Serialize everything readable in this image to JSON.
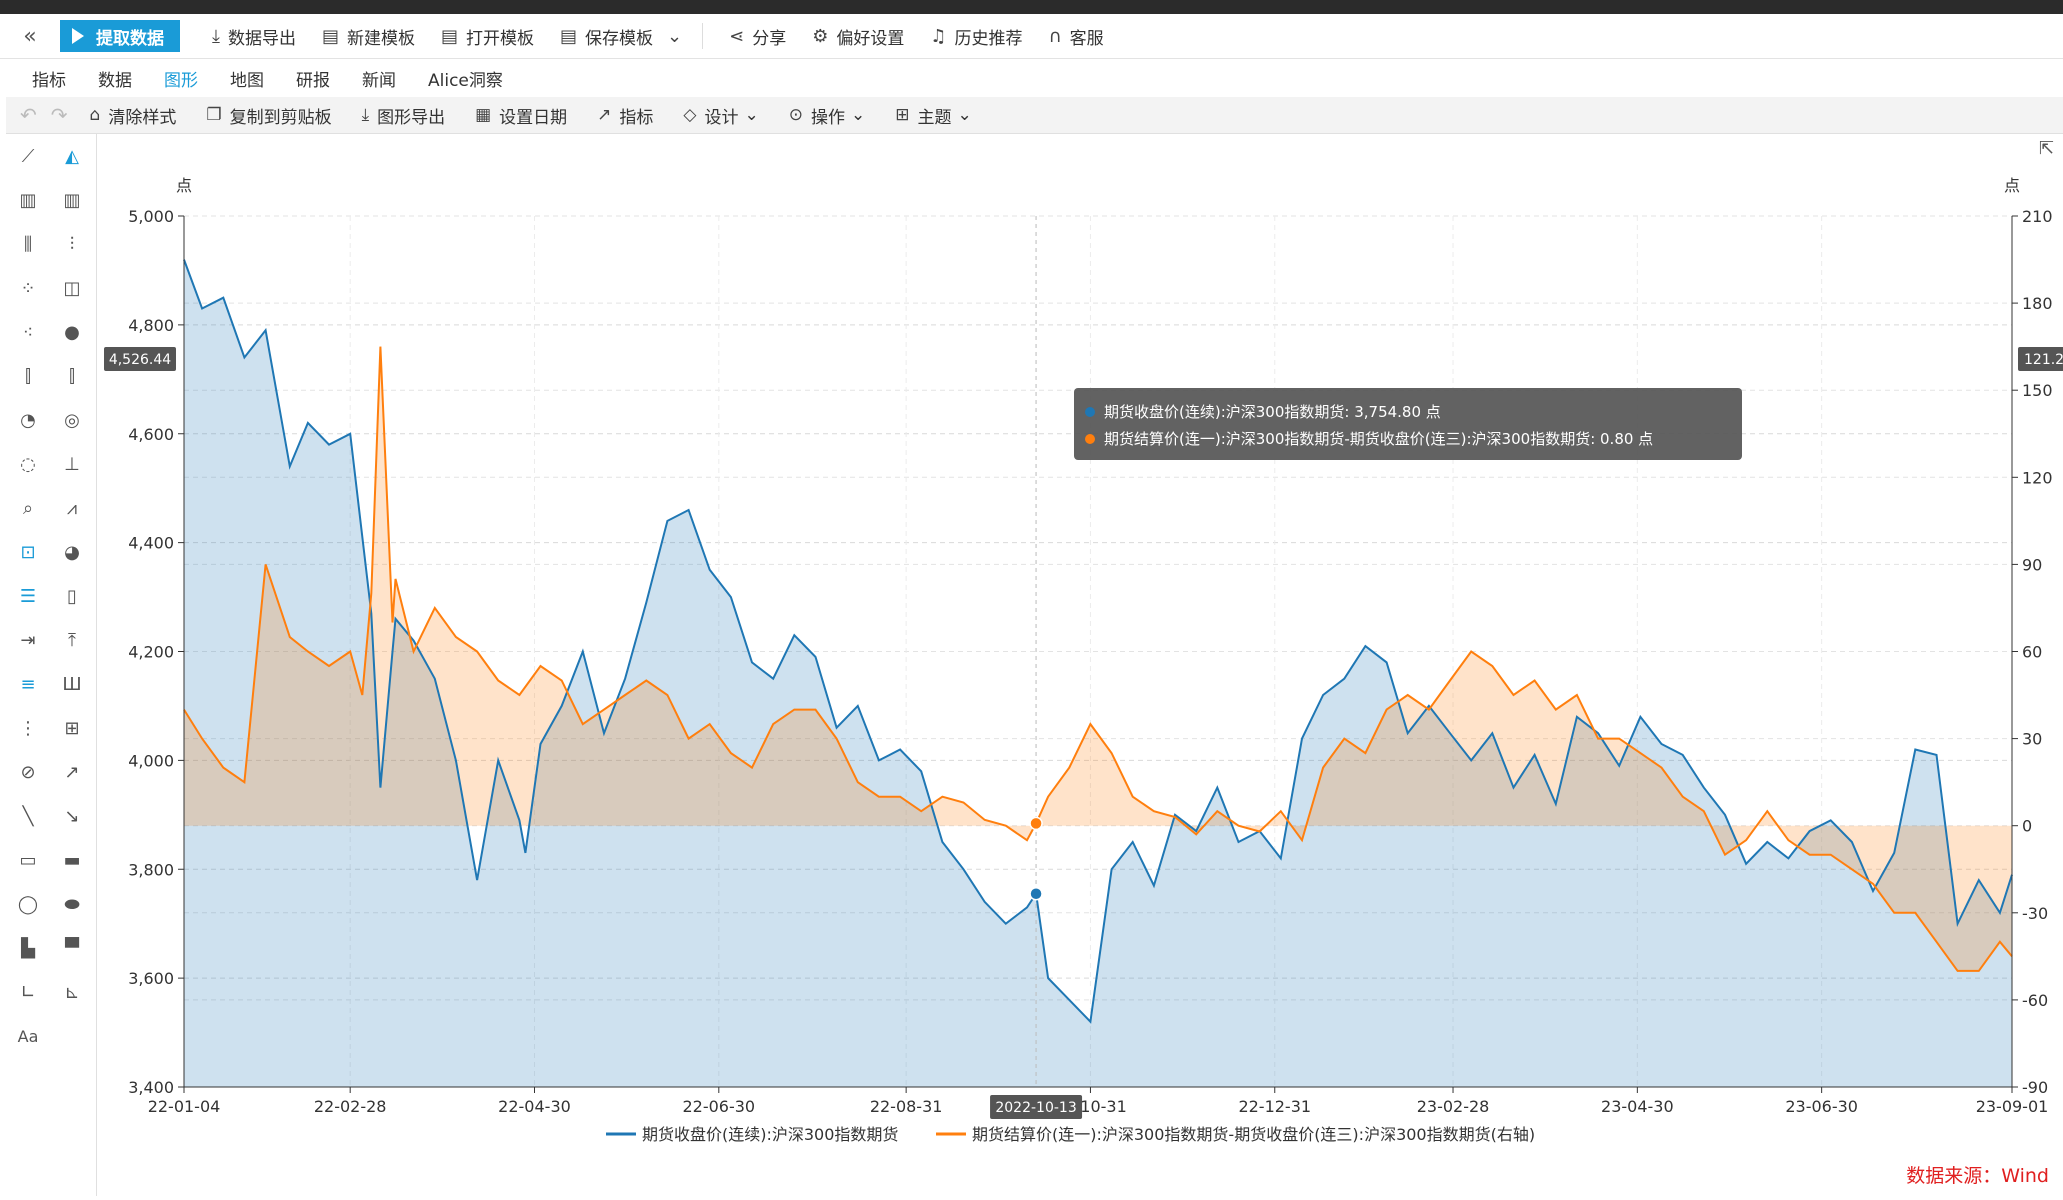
{
  "toolbar": {
    "collapse_icon": "double-chevron-left-icon",
    "extract_label": "提取数据",
    "items": [
      {
        "label": "数据导出",
        "icon": "download-icon"
      },
      {
        "label": "新建模板",
        "icon": "new-template-icon"
      },
      {
        "label": "打开模板",
        "icon": "open-template-icon"
      },
      {
        "label": "保存模板",
        "icon": "save-template-icon"
      },
      {
        "label": "分享",
        "icon": "share-icon"
      },
      {
        "label": "偏好设置",
        "icon": "gear-icon"
      },
      {
        "label": "历史推荐",
        "icon": "bell-icon"
      },
      {
        "label": "客服",
        "icon": "headset-icon"
      }
    ]
  },
  "tabs": [
    {
      "label": "指标",
      "active": false
    },
    {
      "label": "数据",
      "active": false
    },
    {
      "label": "图形",
      "active": true
    },
    {
      "label": "地图",
      "active": false
    },
    {
      "label": "研报",
      "active": false
    },
    {
      "label": "新闻",
      "active": false
    },
    {
      "label": "Alice洞察",
      "active": false
    }
  ],
  "toolbar2": {
    "items": [
      {
        "label": "清除样式",
        "icon": "clear-style-icon"
      },
      {
        "label": "复制到剪贴板",
        "icon": "copy-icon"
      },
      {
        "label": "图形导出",
        "icon": "export-icon"
      },
      {
        "label": "设置日期",
        "icon": "calendar-icon"
      },
      {
        "label": "指标",
        "icon": "line-indicator-icon"
      },
      {
        "label": "设计",
        "icon": "design-icon"
      },
      {
        "label": "操作",
        "icon": "more-icon"
      },
      {
        "label": "主题",
        "icon": "theme-icon"
      }
    ]
  },
  "chart_data": {
    "type": "area",
    "left_unit": "点",
    "right_unit": "点",
    "left_ylim": [
      3400,
      5000
    ],
    "left_ticks": [
      "5,000",
      "4,800",
      "4,600",
      "4,400",
      "4,200",
      "4,000",
      "3,800",
      "3,600",
      "3,400"
    ],
    "right_ylim": [
      -90,
      210
    ],
    "right_ticks": [
      "210",
      "180",
      "150",
      "120",
      "90",
      "60",
      "30",
      "0",
      "-30",
      "-60",
      "-90"
    ],
    "x_ticks": [
      "22-01-04",
      "22-02-28",
      "22-04-30",
      "22-06-30",
      "22-08-31",
      "22-10-31",
      "22-12-31",
      "23-02-28",
      "23-04-30",
      "23-06-30",
      "23-09-01"
    ],
    "crosshair": {
      "date_label": "2022-10-13",
      "left_value_label": "4,526.44",
      "right_value_label": "121.2"
    },
    "tooltip": {
      "lines": [
        {
          "text": "期货收盘价(连续):沪深300指数期货: 3,754.80  点",
          "color": "#1f77b4"
        },
        {
          "text": "期货结算价(连一):沪深300指数期货-期货收盘价(连三):沪深300指数期货: 0.80  点",
          "color": "#ff7f0e"
        }
      ]
    },
    "grid": true,
    "legend_position": "bottom",
    "series": [
      {
        "name": "期货收盘价(连续):沪深300指数期货",
        "axis": "left",
        "color": "#1f77b4",
        "x": [
          "2022-01-04",
          "2022-01-10",
          "2022-01-17",
          "2022-01-24",
          "2022-01-31",
          "2022-02-08",
          "2022-02-14",
          "2022-02-21",
          "2022-02-28",
          "2022-03-07",
          "2022-03-10",
          "2022-03-14",
          "2022-03-15",
          "2022-03-21",
          "2022-03-28",
          "2022-04-04",
          "2022-04-11",
          "2022-04-18",
          "2022-04-25",
          "2022-04-27",
          "2022-05-02",
          "2022-05-09",
          "2022-05-16",
          "2022-05-23",
          "2022-05-30",
          "2022-06-06",
          "2022-06-13",
          "2022-06-20",
          "2022-06-27",
          "2022-07-04",
          "2022-07-11",
          "2022-07-18",
          "2022-07-25",
          "2022-08-01",
          "2022-08-08",
          "2022-08-15",
          "2022-08-22",
          "2022-08-29",
          "2022-09-05",
          "2022-09-12",
          "2022-09-19",
          "2022-09-26",
          "2022-10-03",
          "2022-10-10",
          "2022-10-13",
          "2022-10-17",
          "2022-10-24",
          "2022-10-31",
          "2022-11-07",
          "2022-11-14",
          "2022-11-21",
          "2022-11-28",
          "2022-12-05",
          "2022-12-12",
          "2022-12-19",
          "2022-12-26",
          "2023-01-02",
          "2023-01-09",
          "2023-01-16",
          "2023-01-23",
          "2023-01-30",
          "2023-02-06",
          "2023-02-13",
          "2023-02-20",
          "2023-02-27",
          "2023-03-06",
          "2023-03-13",
          "2023-03-20",
          "2023-03-27",
          "2023-04-03",
          "2023-04-10",
          "2023-04-17",
          "2023-04-24",
          "2023-05-01",
          "2023-05-08",
          "2023-05-15",
          "2023-05-22",
          "2023-05-29",
          "2023-06-05",
          "2023-06-12",
          "2023-06-19",
          "2023-06-26",
          "2023-07-03",
          "2023-07-10",
          "2023-07-17",
          "2023-07-24",
          "2023-07-31",
          "2023-08-07",
          "2023-08-14",
          "2023-08-21",
          "2023-08-28",
          "2023-09-01"
        ],
        "values": [
          4920,
          4830,
          4850,
          4740,
          4790,
          4540,
          4620,
          4580,
          4600,
          4270,
          3950,
          4200,
          4260,
          4220,
          4150,
          4000,
          3780,
          4000,
          3890,
          3830,
          4030,
          4100,
          4200,
          4050,
          4150,
          4290,
          4440,
          4460,
          4350,
          4300,
          4180,
          4150,
          4230,
          4190,
          4060,
          4100,
          4000,
          4020,
          3980,
          3850,
          3800,
          3740,
          3700,
          3730,
          3755,
          3600,
          3560,
          3520,
          3800,
          3850,
          3770,
          3900,
          3870,
          3950,
          3850,
          3870,
          3820,
          4040,
          4120,
          4150,
          4210,
          4180,
          4050,
          4100,
          4050,
          4000,
          4050,
          3950,
          4010,
          3920,
          4080,
          4050,
          3990,
          4080,
          4030,
          4010,
          3950,
          3900,
          3810,
          3850,
          3820,
          3870,
          3890,
          3850,
          3760,
          3830,
          4020,
          4010,
          3700,
          3780,
          3720,
          3790
        ]
      },
      {
        "name": "期货结算价(连一):沪深300指数期货-期货收盘价(连三):沪深300指数期货(右轴)",
        "axis": "right",
        "color": "#ff7f0e",
        "x": [
          "2022-01-04",
          "2022-01-10",
          "2022-01-17",
          "2022-01-24",
          "2022-01-31",
          "2022-02-08",
          "2022-02-14",
          "2022-02-21",
          "2022-02-28",
          "2022-03-04",
          "2022-03-07",
          "2022-03-10",
          "2022-03-14",
          "2022-03-15",
          "2022-03-21",
          "2022-03-28",
          "2022-04-04",
          "2022-04-11",
          "2022-04-18",
          "2022-04-25",
          "2022-05-02",
          "2022-05-09",
          "2022-05-16",
          "2022-05-23",
          "2022-05-30",
          "2022-06-06",
          "2022-06-13",
          "2022-06-20",
          "2022-06-27",
          "2022-07-04",
          "2022-07-11",
          "2022-07-18",
          "2022-07-25",
          "2022-08-01",
          "2022-08-08",
          "2022-08-15",
          "2022-08-22",
          "2022-08-29",
          "2022-09-05",
          "2022-09-12",
          "2022-09-19",
          "2022-09-26",
          "2022-10-03",
          "2022-10-10",
          "2022-10-13",
          "2022-10-17",
          "2022-10-24",
          "2022-10-31",
          "2022-11-07",
          "2022-11-14",
          "2022-11-21",
          "2022-11-28",
          "2022-12-05",
          "2022-12-12",
          "2022-12-19",
          "2022-12-26",
          "2023-01-02",
          "2023-01-09",
          "2023-01-16",
          "2023-01-23",
          "2023-01-30",
          "2023-02-06",
          "2023-02-13",
          "2023-02-20",
          "2023-02-27",
          "2023-03-06",
          "2023-03-13",
          "2023-03-20",
          "2023-03-27",
          "2023-04-03",
          "2023-04-10",
          "2023-04-17",
          "2023-04-24",
          "2023-05-01",
          "2023-05-08",
          "2023-05-15",
          "2023-05-22",
          "2023-05-29",
          "2023-06-05",
          "2023-06-12",
          "2023-06-19",
          "2023-06-26",
          "2023-07-03",
          "2023-07-10",
          "2023-07-17",
          "2023-07-24",
          "2023-07-31",
          "2023-08-07",
          "2023-08-14",
          "2023-08-21",
          "2023-08-28",
          "2023-09-01"
        ],
        "values": [
          40,
          30,
          20,
          15,
          90,
          65,
          60,
          55,
          60,
          45,
          80,
          165,
          70,
          85,
          60,
          75,
          65,
          60,
          50,
          45,
          55,
          50,
          35,
          40,
          45,
          50,
          45,
          30,
          35,
          25,
          20,
          35,
          40,
          40,
          30,
          15,
          10,
          10,
          5,
          10,
          8,
          2,
          0,
          -5,
          0.8,
          10,
          20,
          35,
          25,
          10,
          5,
          3,
          -3,
          5,
          0,
          -2,
          5,
          -5,
          20,
          30,
          25,
          40,
          45,
          40,
          50,
          60,
          55,
          45,
          50,
          40,
          45,
          30,
          30,
          25,
          20,
          10,
          5,
          -10,
          -5,
          5,
          -5,
          -10,
          -10,
          -15,
          -20,
          -30,
          -30,
          -40,
          -50,
          -50,
          -40,
          -45
        ]
      }
    ]
  },
  "source": "数据来源：Wind"
}
